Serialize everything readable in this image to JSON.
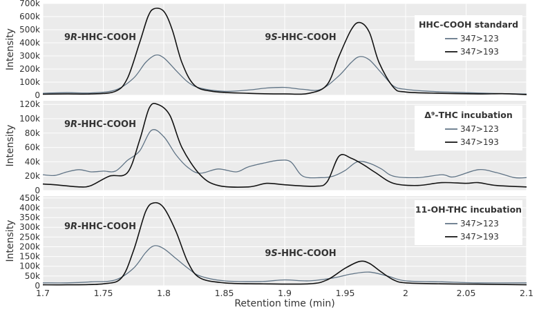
{
  "chart_data": {
    "type": "line",
    "xlabel": "Retention time (min)",
    "xlim": [
      1.7,
      2.1
    ],
    "xticks": [
      1.7,
      1.75,
      1.8,
      1.85,
      1.9,
      1.95,
      2,
      2.05,
      2.1
    ],
    "xtick_labels": [
      "1.7",
      "1.75",
      "1.8",
      "1.85",
      "1.9",
      "1.95",
      "2",
      "2.05",
      "2.1"
    ],
    "panels": [
      {
        "legend_title": "HHC-COOH standard",
        "ylabel": "Intensity",
        "ylim": [
          0,
          700000
        ],
        "yticks": [
          0,
          100000,
          200000,
          300000,
          400000,
          500000,
          600000,
          700000
        ],
        "ytick_labels": [
          "0",
          "100k",
          "200k",
          "300k",
          "400k",
          "500k",
          "600k",
          "700k"
        ],
        "peaks": [
          {
            "prefix": "9",
            "italic": "R",
            "suffix": "-HHC-COOH"
          },
          {
            "prefix": "9",
            "italic": "S",
            "suffix": "-HHC-COOH"
          }
        ],
        "series": [
          {
            "name": "347>123",
            "color": "#5f7385",
            "points": [
              [
                1.7,
                15000
              ],
              [
                1.72,
                20000
              ],
              [
                1.74,
                18000
              ],
              [
                1.76,
                40000
              ],
              [
                1.775,
                130000
              ],
              [
                1.785,
                250000
              ],
              [
                1.793,
                305000
              ],
              [
                1.8,
                285000
              ],
              [
                1.81,
                190000
              ],
              [
                1.82,
                100000
              ],
              [
                1.83,
                55000
              ],
              [
                1.85,
                30000
              ],
              [
                1.87,
                40000
              ],
              [
                1.885,
                55000
              ],
              [
                1.9,
                60000
              ],
              [
                1.915,
                45000
              ],
              [
                1.93,
                45000
              ],
              [
                1.945,
                150000
              ],
              [
                1.955,
                250000
              ],
              [
                1.962,
                295000
              ],
              [
                1.97,
                270000
              ],
              [
                1.98,
                170000
              ],
              [
                1.99,
                70000
              ],
              [
                2.0,
                45000
              ],
              [
                2.02,
                30000
              ],
              [
                2.05,
                20000
              ],
              [
                2.08,
                12000
              ],
              [
                2.1,
                10000
              ]
            ]
          },
          {
            "name": "347>193",
            "color": "#111111",
            "points": [
              [
                1.7,
                8000
              ],
              [
                1.72,
                10000
              ],
              [
                1.74,
                10000
              ],
              [
                1.76,
                30000
              ],
              [
                1.77,
                130000
              ],
              [
                1.78,
                400000
              ],
              [
                1.787,
                600000
              ],
              [
                1.792,
                660000
              ],
              [
                1.8,
                640000
              ],
              [
                1.807,
                500000
              ],
              [
                1.815,
                250000
              ],
              [
                1.825,
                80000
              ],
              [
                1.84,
                30000
              ],
              [
                1.87,
                15000
              ],
              [
                1.9,
                10000
              ],
              [
                1.92,
                15000
              ],
              [
                1.935,
                80000
              ],
              [
                1.945,
                300000
              ],
              [
                1.955,
                500000
              ],
              [
                1.962,
                555000
              ],
              [
                1.97,
                480000
              ],
              [
                1.978,
                250000
              ],
              [
                1.99,
                60000
              ],
              [
                2.0,
                25000
              ],
              [
                2.03,
                15000
              ],
              [
                2.06,
                10000
              ],
              [
                2.08,
                12000
              ],
              [
                2.1,
                5000
              ]
            ]
          }
        ]
      },
      {
        "legend_title": "Δ⁹-THC incubation",
        "ylabel": "Intensity",
        "ylim": [
          0,
          125000
        ],
        "yticks": [
          0,
          20000,
          40000,
          60000,
          80000,
          100000,
          120000
        ],
        "ytick_labels": [
          "0",
          "20k",
          "40k",
          "60k",
          "80k",
          "100k",
          "120k"
        ],
        "peaks": [
          {
            "prefix": "9",
            "italic": "R",
            "suffix": "-HHC-COOH"
          }
        ],
        "series": [
          {
            "name": "347>123",
            "color": "#5f7385",
            "points": [
              [
                1.7,
                22000
              ],
              [
                1.71,
                21000
              ],
              [
                1.72,
                26000
              ],
              [
                1.73,
                29000
              ],
              [
                1.74,
                26000
              ],
              [
                1.75,
                27000
              ],
              [
                1.76,
                27000
              ],
              [
                1.77,
                42000
              ],
              [
                1.78,
                55000
              ],
              [
                1.79,
                84000
              ],
              [
                1.8,
                75000
              ],
              [
                1.81,
                50000
              ],
              [
                1.82,
                32000
              ],
              [
                1.83,
                24000
              ],
              [
                1.845,
                30000
              ],
              [
                1.86,
                26000
              ],
              [
                1.87,
                33000
              ],
              [
                1.885,
                39000
              ],
              [
                1.895,
                42000
              ],
              [
                1.905,
                40000
              ],
              [
                1.915,
                20000
              ],
              [
                1.93,
                18000
              ],
              [
                1.94,
                20000
              ],
              [
                1.95,
                28000
              ],
              [
                1.96,
                40000
              ],
              [
                1.97,
                38000
              ],
              [
                1.98,
                30000
              ],
              [
                1.99,
                20000
              ],
              [
                2.01,
                18000
              ],
              [
                2.03,
                22000
              ],
              [
                2.04,
                19000
              ],
              [
                2.06,
                29000
              ],
              [
                2.075,
                25000
              ],
              [
                2.09,
                18000
              ],
              [
                2.1,
                18000
              ]
            ]
          },
          {
            "name": "347>193",
            "color": "#111111",
            "points": [
              [
                1.7,
                9000
              ],
              [
                1.71,
                8000
              ],
              [
                1.73,
                5000
              ],
              [
                1.74,
                7000
              ],
              [
                1.755,
                20000
              ],
              [
                1.77,
                25000
              ],
              [
                1.78,
                70000
              ],
              [
                1.788,
                115000
              ],
              [
                1.795,
                120000
              ],
              [
                1.805,
                105000
              ],
              [
                1.815,
                60000
              ],
              [
                1.83,
                22000
              ],
              [
                1.845,
                7000
              ],
              [
                1.87,
                5000
              ],
              [
                1.885,
                10000
              ],
              [
                1.9,
                8000
              ],
              [
                1.925,
                6000
              ],
              [
                1.935,
                12000
              ],
              [
                1.945,
                48000
              ],
              [
                1.955,
                45000
              ],
              [
                1.965,
                36000
              ],
              [
                1.975,
                25000
              ],
              [
                1.99,
                10000
              ],
              [
                2.01,
                7000
              ],
              [
                2.03,
                11000
              ],
              [
                2.05,
                10000
              ],
              [
                2.06,
                11000
              ],
              [
                2.075,
                7000
              ],
              [
                2.1,
                5000
              ]
            ]
          }
        ]
      },
      {
        "legend_title": "11-OH-THC incubation",
        "ylabel": "Intensity",
        "ylim": [
          0,
          460000
        ],
        "yticks": [
          0,
          50000,
          100000,
          150000,
          200000,
          250000,
          300000,
          350000,
          400000,
          450000
        ],
        "ytick_labels": [
          "0",
          "50k",
          "100k",
          "150k",
          "200k",
          "250k",
          "300k",
          "350k",
          "400k",
          "450k"
        ],
        "peaks": [
          {
            "prefix": "9",
            "italic": "R",
            "suffix": "-HHC-COOH"
          },
          {
            "prefix": "9",
            "italic": "S",
            "suffix": "-HHC-COOH"
          }
        ],
        "series": [
          {
            "name": "347>123",
            "color": "#5f7385",
            "points": [
              [
                1.7,
                15000
              ],
              [
                1.72,
                15000
              ],
              [
                1.74,
                20000
              ],
              [
                1.76,
                30000
              ],
              [
                1.775,
                90000
              ],
              [
                1.785,
                170000
              ],
              [
                1.792,
                205000
              ],
              [
                1.8,
                190000
              ],
              [
                1.81,
                140000
              ],
              [
                1.82,
                90000
              ],
              [
                1.83,
                50000
              ],
              [
                1.85,
                25000
              ],
              [
                1.88,
                22000
              ],
              [
                1.9,
                30000
              ],
              [
                1.92,
                25000
              ],
              [
                1.94,
                40000
              ],
              [
                1.955,
                60000
              ],
              [
                1.97,
                70000
              ],
              [
                1.985,
                50000
              ],
              [
                2.0,
                25000
              ],
              [
                2.03,
                20000
              ],
              [
                2.06,
                15000
              ],
              [
                2.1,
                15000
              ]
            ]
          },
          {
            "name": "347>193",
            "color": "#111111",
            "points": [
              [
                1.7,
                5000
              ],
              [
                1.72,
                5000
              ],
              [
                1.75,
                10000
              ],
              [
                1.765,
                40000
              ],
              [
                1.775,
                180000
              ],
              [
                1.785,
                380000
              ],
              [
                1.792,
                425000
              ],
              [
                1.8,
                400000
              ],
              [
                1.81,
                280000
              ],
              [
                1.82,
                120000
              ],
              [
                1.83,
                40000
              ],
              [
                1.85,
                15000
              ],
              [
                1.88,
                10000
              ],
              [
                1.92,
                10000
              ],
              [
                1.935,
                30000
              ],
              [
                1.95,
                90000
              ],
              [
                1.962,
                125000
              ],
              [
                1.97,
                115000
              ],
              [
                1.98,
                70000
              ],
              [
                1.99,
                30000
              ],
              [
                2.0,
                15000
              ],
              [
                2.03,
                10000
              ],
              [
                2.06,
                8000
              ],
              [
                2.1,
                5000
              ]
            ]
          }
        ]
      }
    ]
  }
}
